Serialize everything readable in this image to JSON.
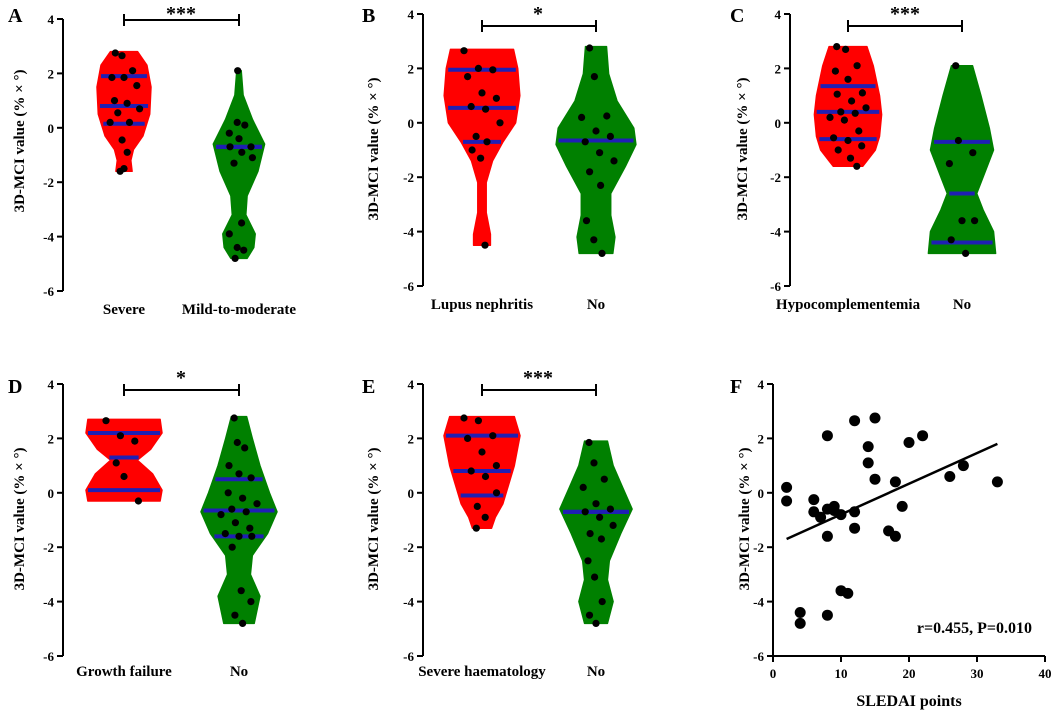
{
  "colors": {
    "severe": "#ff0000",
    "no": "#008000",
    "median": "#1f1fb4",
    "axis": "#000000"
  },
  "chart_data": [
    {
      "type": "violin",
      "panel": "A",
      "ylabel": "3D-MCI value (% × °)",
      "ylim": [
        -6,
        4
      ],
      "yticks": [
        -6,
        -4,
        -2,
        0,
        2,
        4
      ],
      "significance": "***",
      "groups": [
        {
          "name": "Severe",
          "color": "red",
          "quartiles": [
            0.15,
            0.8,
            1.9
          ],
          "points": [
            2.75,
            2.65,
            2.1,
            1.85,
            1.85,
            1.55,
            1.0,
            0.9,
            0.7,
            0.55,
            0.2,
            0.2,
            -0.45,
            -0.9,
            -1.6,
            -1.5
          ],
          "shape": [
            [
              2.8,
              0.5
            ],
            [
              2.3,
              0.85
            ],
            [
              1.5,
              1.0
            ],
            [
              0.5,
              0.95
            ],
            [
              -0.3,
              0.7
            ],
            [
              -0.8,
              0.35
            ],
            [
              -1.2,
              0.25
            ],
            [
              -1.6,
              0.3
            ]
          ]
        },
        {
          "name": "Mild-to-moderate",
          "color": "green",
          "quartiles": [
            -0.7,
            -0.7,
            -0.7
          ],
          "points": [
            2.1,
            0.2,
            0.1,
            -0.2,
            -0.4,
            -0.7,
            -0.7,
            -0.9,
            -1.1,
            -1.3,
            -3.5,
            -3.9,
            -4.4,
            -4.5,
            -4.8
          ],
          "shape": [
            [
              2.1,
              0.08
            ],
            [
              1.2,
              0.15
            ],
            [
              0.3,
              0.5
            ],
            [
              -0.6,
              0.95
            ],
            [
              -1.6,
              0.7
            ],
            [
              -2.5,
              0.3
            ],
            [
              -3.2,
              0.25
            ],
            [
              -3.9,
              0.6
            ],
            [
              -4.4,
              0.55
            ],
            [
              -4.8,
              0.3
            ]
          ]
        }
      ]
    },
    {
      "type": "violin",
      "panel": "B",
      "ylabel": "3D-MCI value (% × °)",
      "ylim": [
        -6,
        4
      ],
      "yticks": [
        -6,
        -4,
        -2,
        0,
        2,
        4
      ],
      "significance": "*",
      "groups": [
        {
          "name": "Lupus nephritis",
          "color": "red",
          "quartiles": [
            -0.7,
            0.55,
            1.95
          ],
          "points": [
            2.65,
            2.0,
            1.95,
            1.7,
            1.1,
            0.9,
            0.6,
            0.5,
            0.0,
            -0.5,
            -0.7,
            -1.0,
            -1.3,
            -4.5
          ],
          "shape": [
            [
              2.7,
              0.75
            ],
            [
              2.0,
              0.85
            ],
            [
              1.0,
              0.9
            ],
            [
              0.0,
              0.8
            ],
            [
              -0.7,
              0.5
            ],
            [
              -1.4,
              0.25
            ],
            [
              -2.2,
              0.1
            ],
            [
              -3.3,
              0.1
            ],
            [
              -4.1,
              0.2
            ],
            [
              -4.5,
              0.2
            ]
          ]
        },
        {
          "name": "No",
          "color": "green",
          "quartiles": [
            -0.65,
            -0.65,
            -0.65
          ],
          "points": [
            2.75,
            1.7,
            0.25,
            0.2,
            -0.3,
            -0.5,
            -0.7,
            -1.1,
            -1.4,
            -1.8,
            -2.3,
            -3.6,
            -4.3,
            -4.8
          ],
          "shape": [
            [
              2.8,
              0.25
            ],
            [
              1.8,
              0.3
            ],
            [
              0.8,
              0.5
            ],
            [
              -0.2,
              0.9
            ],
            [
              -0.8,
              0.95
            ],
            [
              -1.6,
              0.7
            ],
            [
              -2.6,
              0.35
            ],
            [
              -3.4,
              0.35
            ],
            [
              -4.2,
              0.45
            ],
            [
              -4.8,
              0.4
            ]
          ]
        }
      ]
    },
    {
      "type": "violin",
      "panel": "C",
      "ylabel": "3D-MCI value (% × °)",
      "ylim": [
        -6,
        4
      ],
      "yticks": [
        -6,
        -4,
        -2,
        0,
        2,
        4
      ],
      "significance": "***",
      "groups": [
        {
          "name": "Hypocomplementemia",
          "color": "red",
          "quartiles": [
            -0.6,
            0.4,
            1.35
          ],
          "points": [
            2.8,
            2.7,
            2.1,
            1.9,
            1.6,
            1.1,
            1.05,
            0.8,
            0.55,
            0.4,
            0.35,
            0.2,
            0.1,
            -0.3,
            -0.55,
            -0.65,
            -0.85,
            -1.0,
            -1.3,
            -1.6
          ],
          "shape": [
            [
              2.8,
              0.45
            ],
            [
              2.1,
              0.6
            ],
            [
              1.0,
              0.75
            ],
            [
              0.3,
              0.8
            ],
            [
              -0.5,
              0.75
            ],
            [
              -1.0,
              0.65
            ],
            [
              -1.4,
              0.45
            ],
            [
              -1.6,
              0.35
            ]
          ]
        },
        {
          "name": "No",
          "color": "green",
          "quartiles": [
            -4.4,
            -2.6,
            -0.7
          ],
          "points": [
            2.1,
            -0.65,
            -1.1,
            -1.5,
            -3.6,
            -3.6,
            -4.3,
            -4.8
          ],
          "shape": [
            [
              2.1,
              0.25
            ],
            [
              1.0,
              0.45
            ],
            [
              -0.2,
              0.65
            ],
            [
              -1.0,
              0.75
            ],
            [
              -2.0,
              0.5
            ],
            [
              -2.6,
              0.35
            ],
            [
              -3.2,
              0.5
            ],
            [
              -4.0,
              0.75
            ],
            [
              -4.8,
              0.8
            ]
          ]
        }
      ]
    },
    {
      "type": "violin",
      "panel": "D",
      "ylabel": "3D-MCI value (% × °)",
      "ylim": [
        -6,
        4
      ],
      "yticks": [
        -6,
        -4,
        -2,
        0,
        2,
        4
      ],
      "significance": "*",
      "groups": [
        {
          "name": "Growth failure",
          "color": "red",
          "quartiles": [
            0.1,
            1.3,
            2.2
          ],
          "points": [
            2.65,
            2.1,
            1.9,
            1.1,
            0.6,
            -0.3
          ],
          "shape": [
            [
              2.7,
              0.95
            ],
            [
              2.2,
              1.0
            ],
            [
              1.6,
              0.7
            ],
            [
              1.2,
              0.35
            ],
            [
              0.7,
              0.75
            ],
            [
              0.1,
              1.0
            ],
            [
              -0.3,
              0.95
            ]
          ]
        },
        {
          "name": "No",
          "color": "green",
          "quartiles": [
            -1.6,
            -0.65,
            0.5
          ],
          "points": [
            2.75,
            1.85,
            1.65,
            1.0,
            0.7,
            0.55,
            0.0,
            -0.2,
            -0.4,
            -0.6,
            -0.7,
            -0.8,
            -1.1,
            -1.3,
            -1.5,
            -1.6,
            -1.6,
            -2.0,
            -3.6,
            -4.0,
            -4.5,
            -4.8
          ],
          "shape": [
            [
              2.8,
              0.2
            ],
            [
              2.0,
              0.35
            ],
            [
              1.0,
              0.55
            ],
            [
              0.0,
              0.8
            ],
            [
              -0.7,
              1.0
            ],
            [
              -1.5,
              0.75
            ],
            [
              -2.3,
              0.35
            ],
            [
              -3.0,
              0.3
            ],
            [
              -3.8,
              0.55
            ],
            [
              -4.8,
              0.4
            ]
          ]
        }
      ]
    },
    {
      "type": "violin",
      "panel": "E",
      "ylabel": "3D-MCI value (% × °)",
      "ylim": [
        -6,
        4
      ],
      "yticks": [
        -6,
        -4,
        -2,
        0,
        2,
        4
      ],
      "significance": "***",
      "groups": [
        {
          "name": "Severe haematology",
          "color": "red",
          "quartiles": [
            -0.1,
            0.8,
            2.1
          ],
          "points": [
            2.75,
            2.65,
            2.1,
            2.0,
            1.5,
            1.0,
            0.8,
            0.6,
            0.0,
            -0.5,
            -0.9,
            -1.3
          ],
          "shape": [
            [
              2.8,
              0.85
            ],
            [
              2.1,
              1.0
            ],
            [
              1.0,
              0.85
            ],
            [
              0.3,
              0.7
            ],
            [
              -0.4,
              0.55
            ],
            [
              -0.9,
              0.35
            ],
            [
              -1.3,
              0.25
            ]
          ]
        },
        {
          "name": "No",
          "color": "green",
          "quartiles": [
            -0.7,
            -0.7,
            -0.7
          ],
          "points": [
            1.85,
            1.1,
            0.5,
            0.2,
            -0.4,
            -0.6,
            -0.7,
            -0.9,
            -1.2,
            -1.5,
            -1.7,
            -2.5,
            -3.1,
            -4.0,
            -4.5,
            -4.8
          ],
          "shape": [
            [
              1.9,
              0.3
            ],
            [
              1.0,
              0.45
            ],
            [
              0.2,
              0.7
            ],
            [
              -0.6,
              0.95
            ],
            [
              -1.5,
              0.65
            ],
            [
              -2.5,
              0.35
            ],
            [
              -3.2,
              0.3
            ],
            [
              -4.0,
              0.45
            ],
            [
              -4.8,
              0.3
            ]
          ]
        }
      ]
    },
    {
      "type": "scatter",
      "panel": "F",
      "xlabel": "SLEDAI points",
      "ylabel": "3D-MCI value (% × °)",
      "xlim": [
        0,
        40
      ],
      "ylim": [
        -6,
        4
      ],
      "xticks": [
        0,
        10,
        20,
        30,
        40
      ],
      "yticks": [
        -6,
        -4,
        -2,
        0,
        2,
        4
      ],
      "annotation": "r=0.455, P=0.010",
      "fit_line": {
        "x": [
          2,
          33
        ],
        "y": [
          -1.7,
          1.8
        ]
      },
      "points": [
        [
          2,
          0.2
        ],
        [
          2,
          -0.3
        ],
        [
          4,
          -4.4
        ],
        [
          4,
          -4.8
        ],
        [
          6,
          -0.7
        ],
        [
          6,
          -0.25
        ],
        [
          7,
          -0.9
        ],
        [
          8,
          2.1
        ],
        [
          8,
          -0.6
        ],
        [
          8,
          -1.6
        ],
        [
          8,
          -4.5
        ],
        [
          9,
          -0.5
        ],
        [
          9,
          -0.65
        ],
        [
          10,
          -0.8
        ],
        [
          10,
          -3.6
        ],
        [
          11,
          -3.7
        ],
        [
          12,
          2.65
        ],
        [
          12,
          -0.7
        ],
        [
          12,
          -1.3
        ],
        [
          14,
          1.7
        ],
        [
          14,
          1.1
        ],
        [
          15,
          2.75
        ],
        [
          15,
          0.5
        ],
        [
          17,
          -1.4
        ],
        [
          18,
          0.4
        ],
        [
          18,
          -1.6
        ],
        [
          19,
          -0.5
        ],
        [
          20,
          1.85
        ],
        [
          22,
          2.1
        ],
        [
          26,
          0.6
        ],
        [
          28,
          1.0
        ],
        [
          33,
          0.4
        ]
      ]
    }
  ]
}
